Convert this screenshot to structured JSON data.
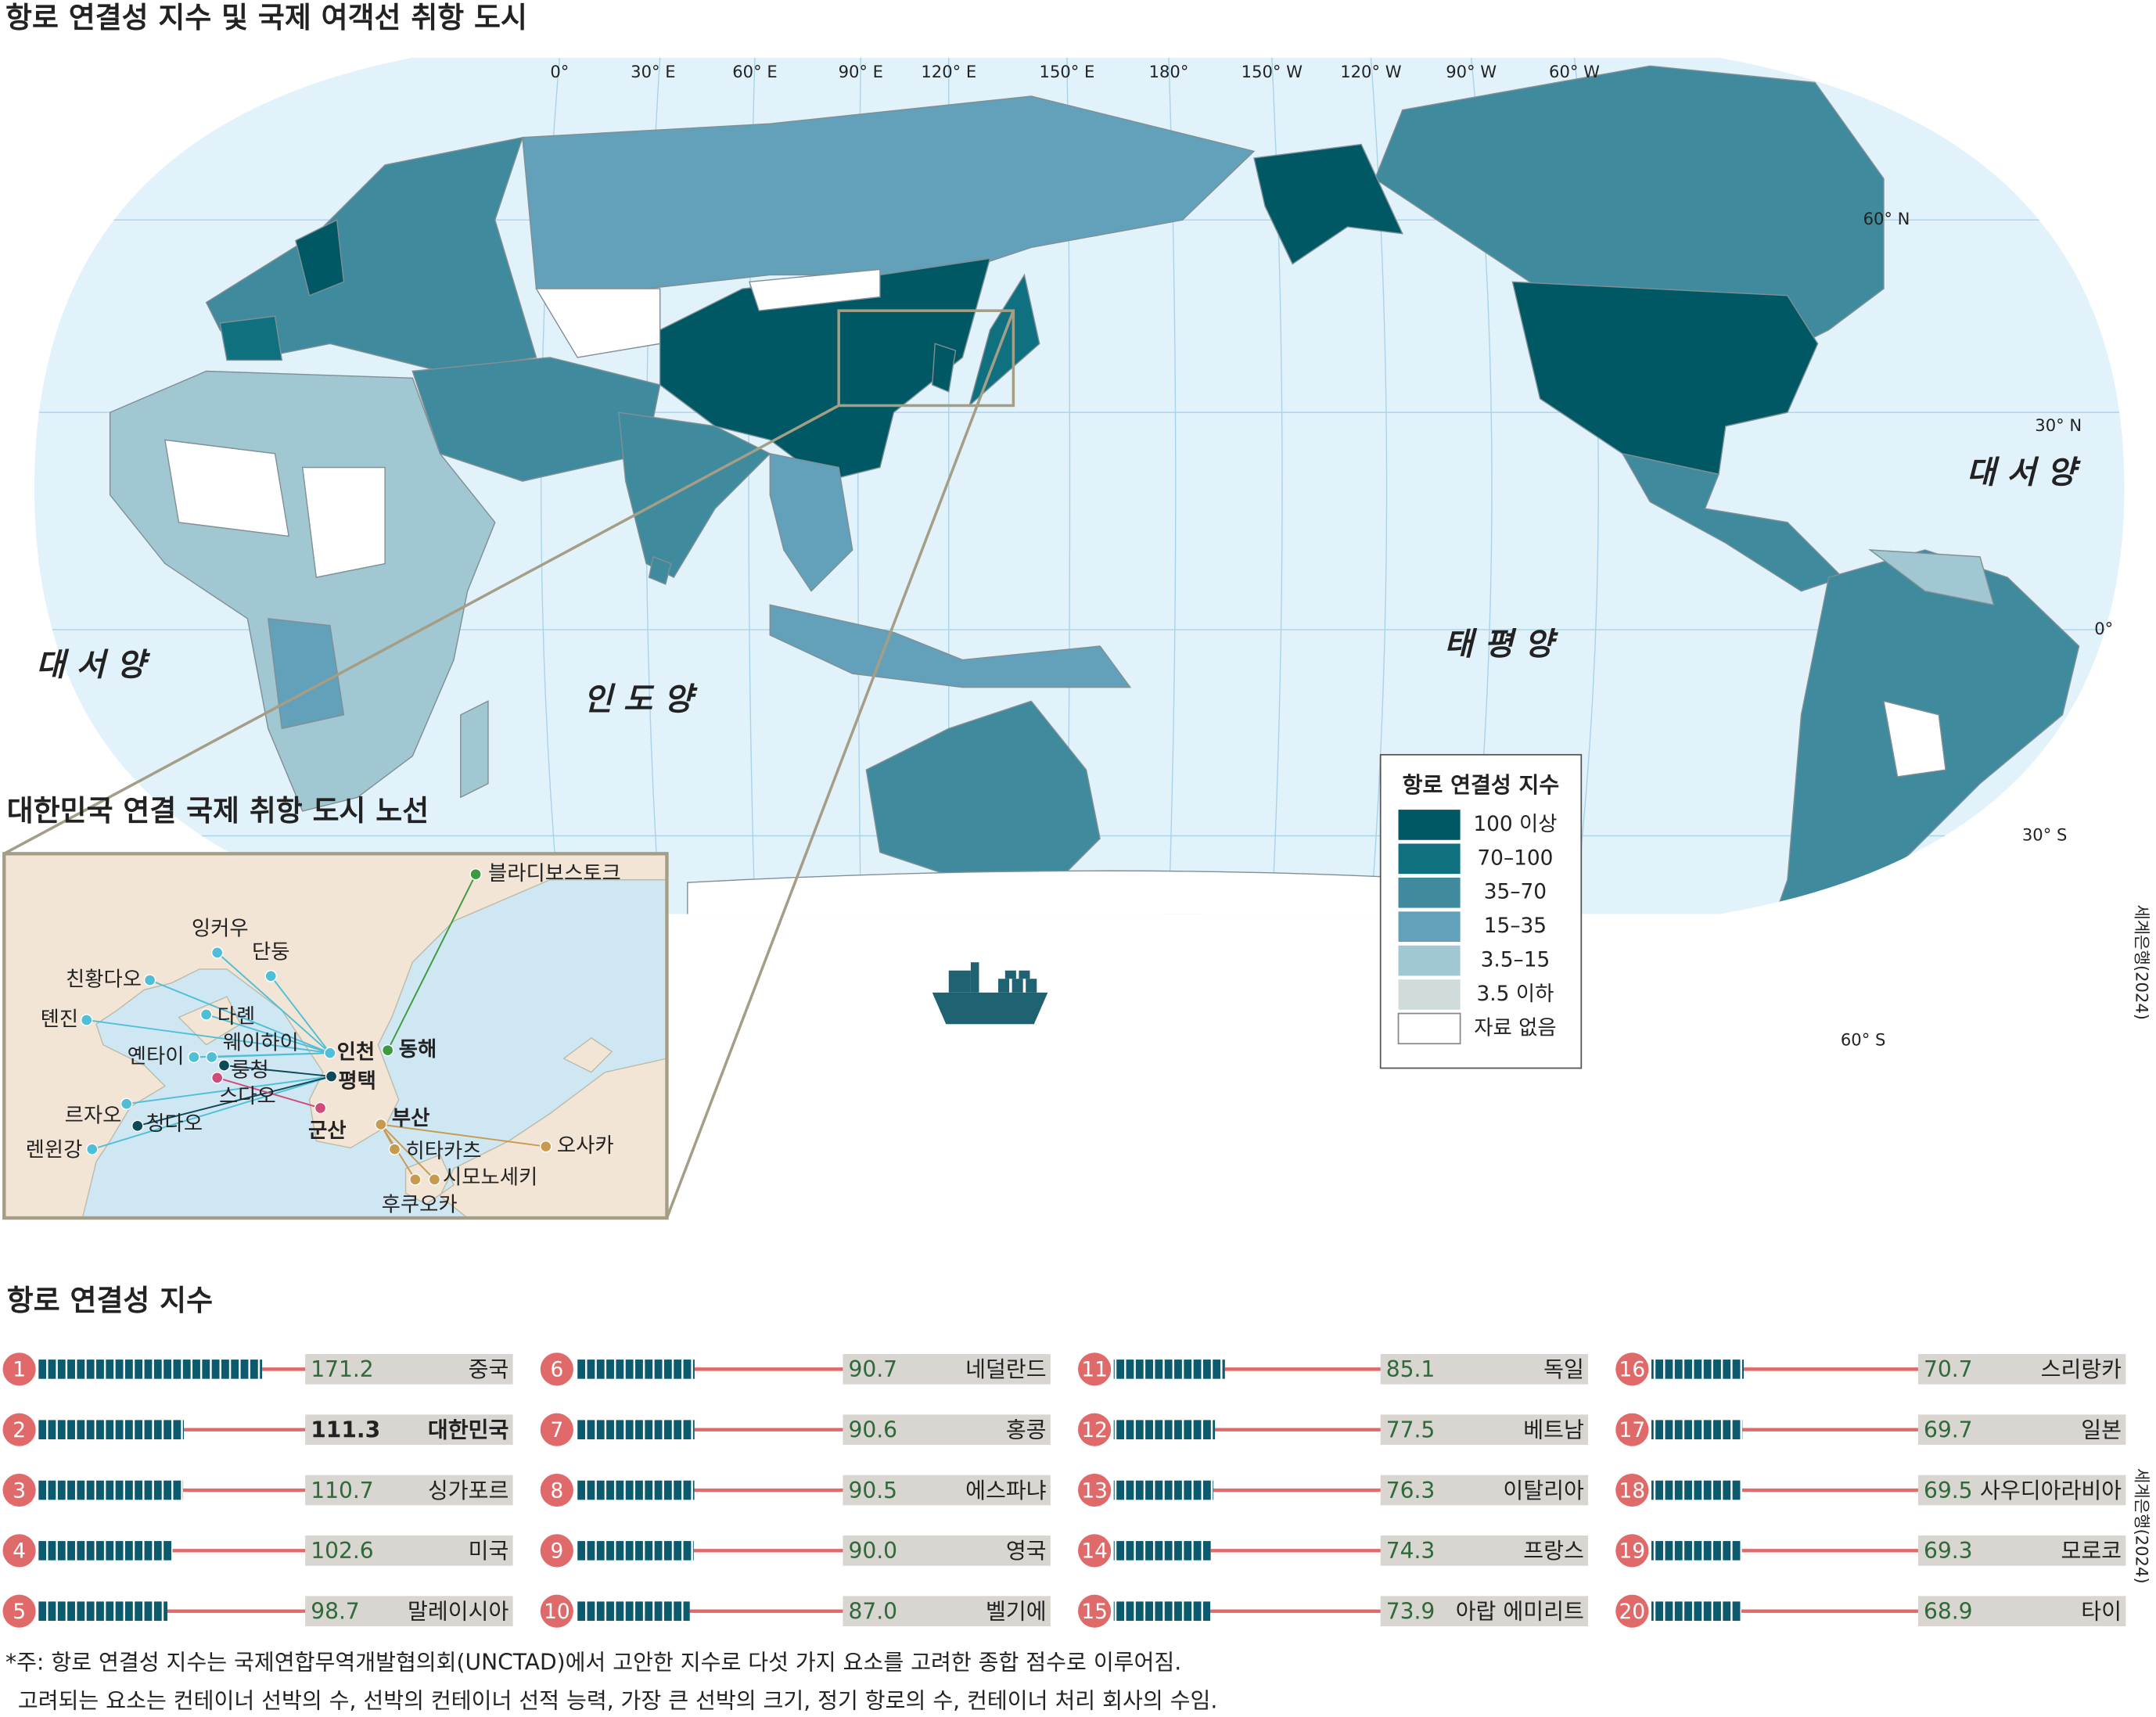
{
  "title": "항로 연결성 지수 및 국제 여객선 취항 도시",
  "map": {
    "longitude_labels": [
      "0°",
      "30° E",
      "60° E",
      "90° E",
      "120° E",
      "150° E",
      "180°",
      "150° W",
      "120° W",
      "90° W",
      "60° W"
    ],
    "latitude_labels": [
      "60° N",
      "30° N",
      "0°",
      "30° S",
      "60° S"
    ],
    "ocean_labels": [
      "대 서 양",
      "인 도 양",
      "태 평 양",
      "대 서 양"
    ],
    "legend": {
      "title": "항로 연결성 지수",
      "items": [
        {
          "label": "100  이상",
          "color": "#005864"
        },
        {
          "label": "70–100",
          "color": "#0f7080"
        },
        {
          "label": "35–70",
          "color": "#3f8a9d"
        },
        {
          "label": "15–35",
          "color": "#62a1b9"
        },
        {
          "label": "3.5–15",
          "color": "#a1c7d2"
        },
        {
          "label": "3.5  이하",
          "color": "#d0dcdc"
        },
        {
          "label": "자료 없음",
          "color": "#ffffff"
        }
      ]
    }
  },
  "inset": {
    "title": "대한민국 연결 국제 취항 도시 노선",
    "cities": [
      "블라디보스토크",
      "잉커우",
      "단둥",
      "친황다오",
      "다롄",
      "톈진",
      "옌타이",
      "웨이하이",
      "룽청",
      "스다오",
      "르자오",
      "칭다오",
      "렌윈강",
      "인천",
      "평택",
      "군산",
      "동해",
      "부산",
      "히타카츠",
      "시모노세키",
      "후쿠오카",
      "오사카"
    ]
  },
  "chart_data": {
    "type": "bar",
    "title": "항로 연결성 지수",
    "ranks": [
      1,
      2,
      3,
      4,
      5,
      6,
      7,
      8,
      9,
      10,
      11,
      12,
      13,
      14,
      15,
      16,
      17,
      18,
      19,
      20
    ],
    "categories": [
      "중국",
      "대한민국",
      "싱가포르",
      "미국",
      "말레이시아",
      "네덜란드",
      "홍콩",
      "에스파냐",
      "영국",
      "벨기에",
      "독일",
      "베트남",
      "이탈리아",
      "프랑스",
      "아랍 에미리트",
      "스리랑카",
      "일본",
      "사우디아라비아",
      "모로코",
      "타이"
    ],
    "values": [
      171.2,
      111.3,
      110.7,
      102.6,
      98.7,
      90.7,
      90.6,
      90.5,
      90.0,
      87.0,
      85.1,
      77.5,
      76.3,
      74.3,
      73.9,
      70.7,
      69.7,
      69.5,
      69.3,
      68.9
    ],
    "value_labels": [
      "171.2",
      "111.3",
      "110.7",
      "102.6",
      "98.7",
      "90.7",
      "90.6",
      "90.5",
      "90.0",
      "87.0",
      "85.1",
      "77.5",
      "76.3",
      "74.3",
      "73.9",
      "70.7",
      "69.7",
      "69.5",
      "69.3",
      "68.9"
    ],
    "color": "#0b5a6e",
    "highlight": "대한민국"
  },
  "footnote": [
    "*주: 항로 연결성 지수는 국제연합무역개발협의회(UNCTAD)에서 고안한 지수로 다섯 가지 요소를 고려한 종합 점수로 이루어짐.",
    "고려되는 요소는 컨테이너 선박의 수, 선박의 컨테이너 선적 능력, 가장 큰 선박의 크기, 정기 항로의 수, 컨테이너 처리 회사의 수임."
  ],
  "source": "세계은행(2024)"
}
